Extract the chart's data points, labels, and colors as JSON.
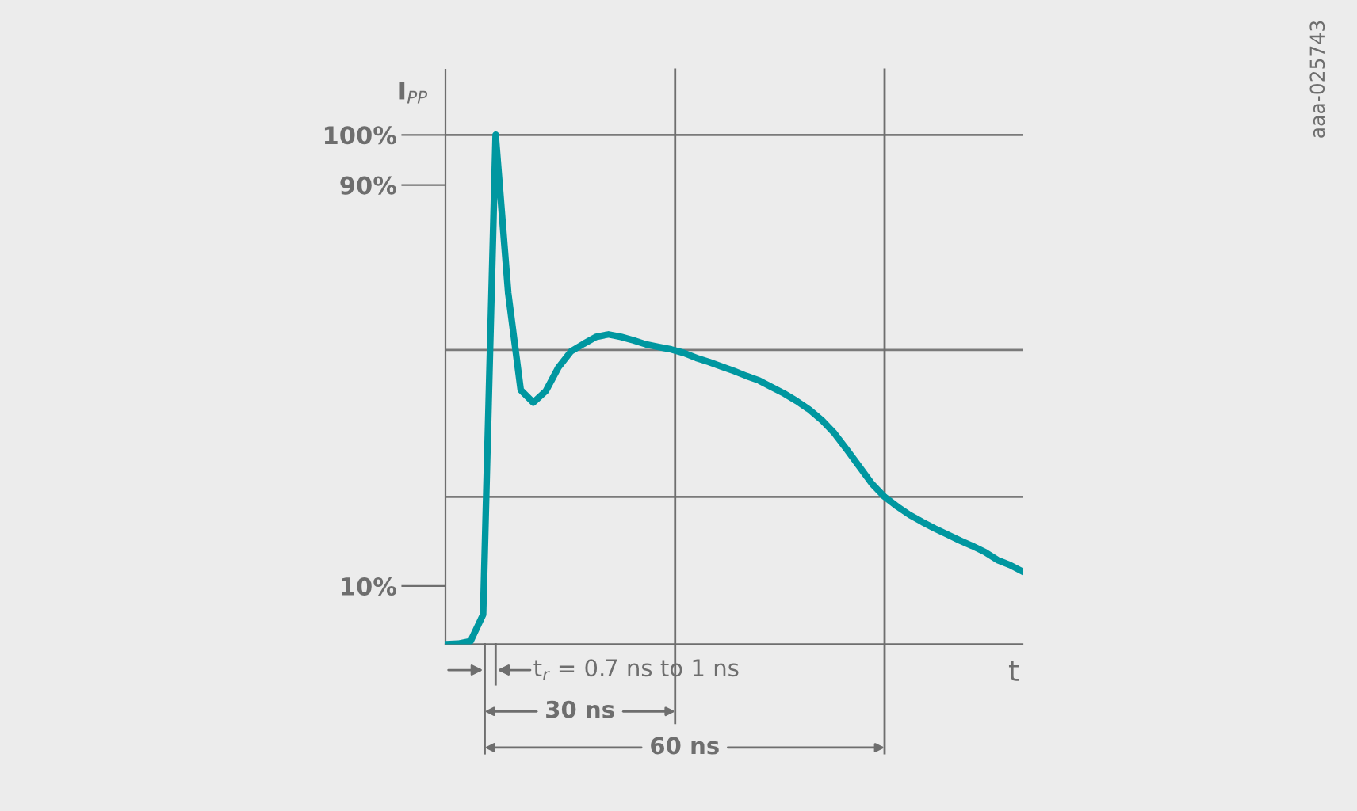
{
  "chart_data": {
    "type": "line",
    "ylabel": "I$_{PP}$",
    "xlabel": "t",
    "annotations": [
      "t$_{r}$ = 0.7 ns to 1 ns",
      "30 ns",
      "60 ns",
      "aaa-025743"
    ],
    "categories": [
      null,
      null,
      null,
      null,
      null,
      null,
      null,
      null,
      null,
      null,
      null,
      null,
      null,
      null,
      null,
      null,
      null,
      null,
      null,
      null,
      null,
      null,
      null,
      null,
      null,
      null,
      null,
      null,
      null,
      null,
      null,
      null,
      null,
      null,
      null,
      null,
      null,
      null,
      null,
      null,
      null,
      null,
      null,
      null,
      null,
      null,
      null
    ],
    "series": [
      {
        "color": "#0097a0",
        "values": [
          -1.6,
          -1.5,
          -1.0,
          4.3,
          100,
          68.5,
          49.1,
          46.6,
          48.9,
          53.6,
          56.8,
          58.3,
          59.7,
          60.2,
          59.7,
          59.0,
          58.2,
          57.7,
          57.2,
          56.5,
          55.5,
          54.7,
          53.8,
          52.9,
          51.9,
          51.0,
          49.7,
          48.4,
          46.9,
          45.2,
          43.1,
          40.5,
          37.2,
          33.8,
          30.4,
          27.8,
          25.9,
          24.2,
          22.8,
          21.5,
          20.3,
          19.1,
          18.0,
          16.8,
          15.2,
          14.2,
          12.9
        ]
      }
    ],
    "ylim": [
      -1.6,
      113
    ],
    "yticks": [
      {
        "value": 10,
        "label": "10%"
      },
      {
        "value": 90,
        "label": "90%"
      },
      {
        "value": 100,
        "label": "100%"
      }
    ],
    "ref_lines": [
      {
        "axis": "y",
        "value": 100,
        "color": "#7a7a7a"
      },
      {
        "axis": "y",
        "value": 57.1,
        "color": "#7a7a7a"
      },
      {
        "axis": "y",
        "value": 27.8,
        "color": "#7a7a7a"
      }
    ],
    "grid": false,
    "marker": "none",
    "line_style": "solid"
  }
}
